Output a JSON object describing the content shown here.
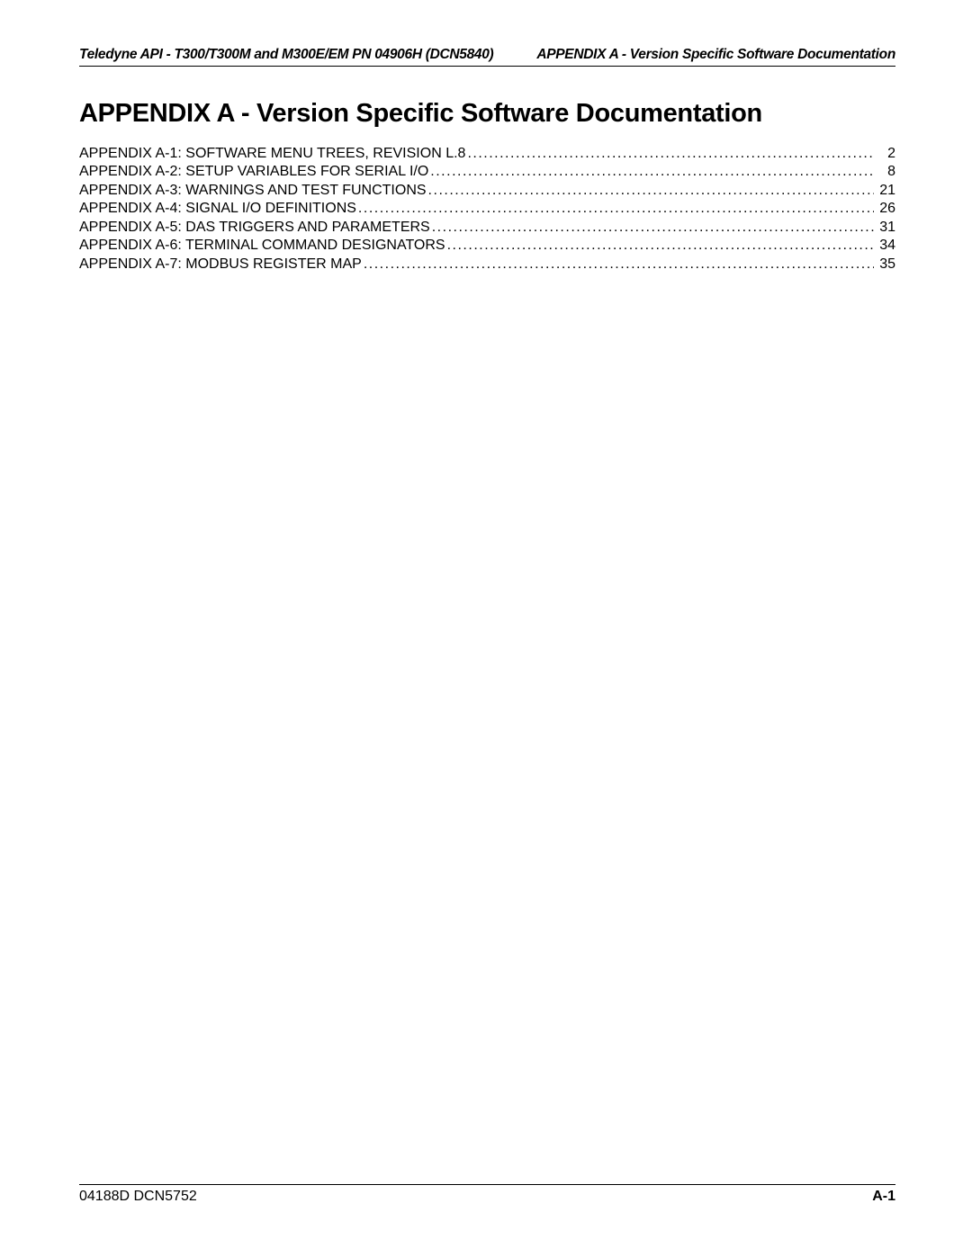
{
  "header": {
    "left": "Teledyne API - T300/T300M and M300E/EM  PN 04906H (DCN5840)",
    "right": "APPENDIX A - Version Specific Software Documentation"
  },
  "title": "APPENDIX A - Version Specific Software Documentation",
  "toc": {
    "items": [
      {
        "label": "APPENDIX A-1: SOFTWARE MENU TREES, REVISION L.8",
        "page": "2"
      },
      {
        "label": "APPENDIX A-2: SETUP VARIABLES FOR SERIAL I/O",
        "page": "8"
      },
      {
        "label": "APPENDIX A-3: WARNINGS AND TEST FUNCTIONS",
        "page": "21"
      },
      {
        "label": "APPENDIX A-4:  SIGNAL I/O DEFINITIONS",
        "page": "26"
      },
      {
        "label": "APPENDIX A-5: DAS TRIGGERS AND PARAMETERS",
        "page": "31"
      },
      {
        "label": "APPENDIX A-6: TERMINAL COMMAND DESIGNATORS",
        "page": "34"
      },
      {
        "label": "APPENDIX A-7: MODBUS REGISTER MAP",
        "page": "35"
      }
    ]
  },
  "footer": {
    "left": "04188D DCN5752",
    "right": "A-1"
  },
  "colors": {
    "text": "#000000",
    "background": "#ffffff",
    "rule": "#000000"
  },
  "typography": {
    "header_fontsize": 15.5,
    "title_fontsize": 29,
    "toc_fontsize": 16,
    "footer_fontsize": 16
  }
}
